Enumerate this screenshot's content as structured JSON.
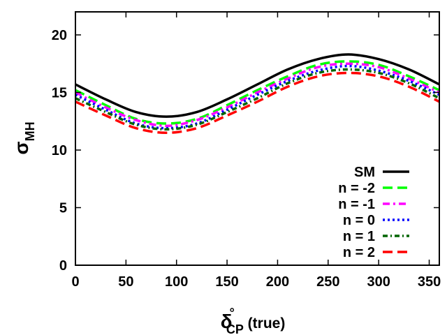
{
  "chart_data": {
    "type": "line",
    "title": "",
    "xlabel": {
      "main": "δ",
      "sup": "°",
      "sub": "CP",
      "suffix": " (true)"
    },
    "ylabel": {
      "main": "σ",
      "sub": "MH"
    },
    "xlim": [
      0,
      360
    ],
    "ylim": [
      0,
      22
    ],
    "xticks": [
      0,
      50,
      100,
      150,
      200,
      250,
      300,
      350
    ],
    "yticks": [
      0,
      5,
      10,
      15,
      20
    ],
    "grid": false,
    "legend_position": "bottom-right",
    "x": [
      0,
      30,
      60,
      90,
      120,
      150,
      180,
      210,
      240,
      270,
      300,
      330,
      360
    ],
    "series": [
      {
        "name": "SM",
        "color": "#000000",
        "style": "solid",
        "values": [
          15.7,
          14.4,
          13.3,
          12.9,
          13.3,
          14.4,
          15.7,
          17.0,
          17.9,
          18.3,
          17.9,
          17.0,
          15.7
        ]
      },
      {
        "name": "n = -2",
        "color": "#00ff00",
        "style": "dashed",
        "values": [
          15.2,
          13.9,
          12.7,
          12.3,
          12.7,
          13.9,
          15.2,
          16.4,
          17.4,
          17.7,
          17.4,
          16.4,
          15.2
        ]
      },
      {
        "name": "n = -1",
        "color": "#ff00ff",
        "style": "dashdot",
        "values": [
          15.0,
          13.7,
          12.6,
          12.1,
          12.6,
          13.7,
          15.0,
          16.2,
          17.2,
          17.5,
          17.2,
          16.2,
          15.0
        ]
      },
      {
        "name": "n = 0",
        "color": "#0000ff",
        "style": "dotted",
        "values": [
          14.8,
          13.5,
          12.3,
          11.9,
          12.3,
          13.5,
          14.8,
          16.0,
          16.9,
          17.3,
          16.9,
          16.0,
          14.8
        ]
      },
      {
        "name": "n = 1",
        "color": "#006400",
        "style": "dashdot2",
        "values": [
          14.5,
          13.3,
          12.2,
          11.8,
          12.2,
          13.3,
          14.5,
          15.8,
          16.7,
          17.0,
          16.7,
          15.8,
          14.5
        ]
      },
      {
        "name": "n = 2",
        "color": "#ff0000",
        "style": "dashed",
        "values": [
          14.2,
          13.0,
          11.9,
          11.5,
          11.9,
          13.0,
          14.2,
          15.5,
          16.4,
          16.7,
          16.4,
          15.5,
          14.2
        ]
      }
    ]
  }
}
